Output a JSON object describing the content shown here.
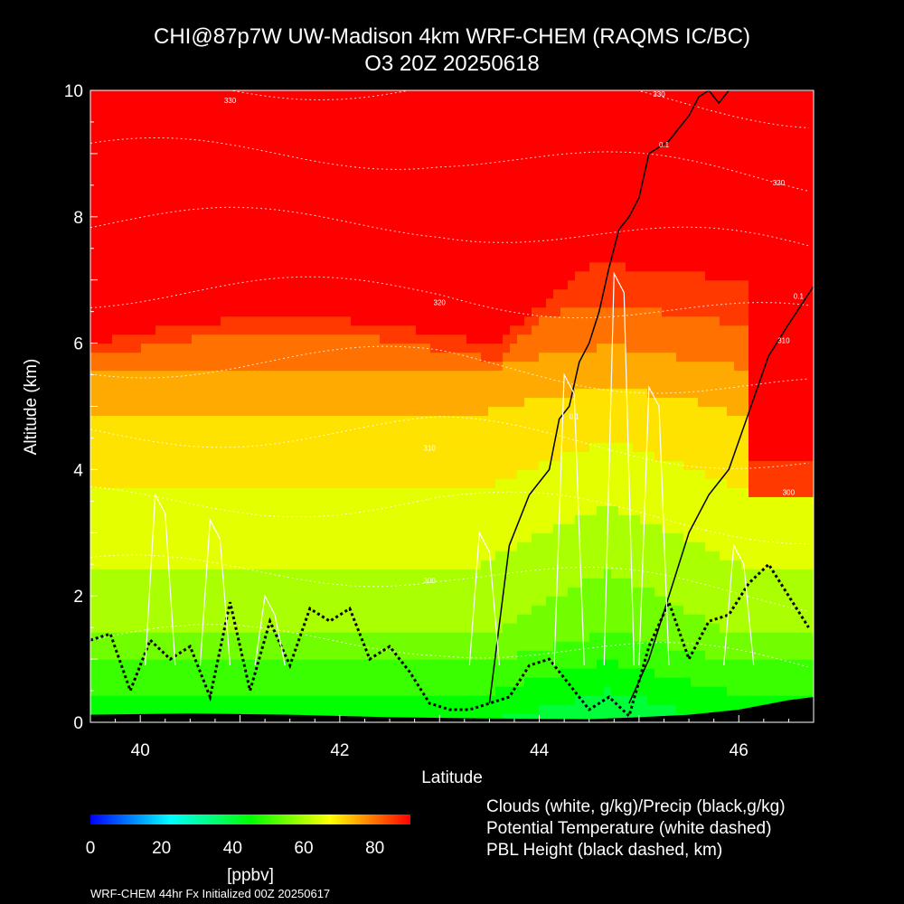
{
  "title": {
    "line1": "CHI@87p7W UW-Madison 4km WRF-CHEM (RAQMS IC/BC)",
    "line2": "O3 20Z 20250618"
  },
  "chart_data": {
    "type": "heatmap",
    "title": "CHI@87p7W UW-Madison 4km WRF-CHEM (RAQMS IC/BC) O3 20Z 20250618",
    "xlabel": "Latitude",
    "ylabel": "Altitude (km)",
    "xlim": [
      39.5,
      46.75
    ],
    "ylim": [
      0,
      10
    ],
    "x_ticks": [
      40,
      42,
      44,
      46
    ],
    "y_ticks": [
      0,
      2,
      4,
      6,
      8,
      10
    ],
    "field": "O3 mixing ratio (ppbv)",
    "colorbar": {
      "min": 0,
      "max": 90,
      "ticks": [
        0,
        20,
        40,
        60,
        80
      ],
      "unit": "[ppbv]",
      "colors": [
        "#0000ff",
        "#00ffff",
        "#00ff00",
        "#ffff00",
        "#ff0000"
      ]
    },
    "contour_labels": {
      "potential_temperature": [
        {
          "x": 40.9,
          "y": 9.8,
          "text": "330"
        },
        {
          "x": 45.2,
          "y": 9.9,
          "text": "330"
        },
        {
          "x": 43.0,
          "y": 6.6,
          "text": "320"
        },
        {
          "x": 42.9,
          "y": 4.3,
          "text": "310"
        },
        {
          "x": 42.9,
          "y": 2.2,
          "text": "300"
        },
        {
          "x": 46.4,
          "y": 8.5,
          "text": "320"
        },
        {
          "x": 46.45,
          "y": 6.0,
          "text": "310"
        },
        {
          "x": 46.5,
          "y": 3.6,
          "text": "300"
        }
      ],
      "clouds": [
        {
          "x": 44.35,
          "y": 4.8,
          "text": "0.1"
        },
        {
          "x": 45.25,
          "y": 9.1,
          "text": "0.1"
        },
        {
          "x": 46.6,
          "y": 6.7,
          "text": "0.1"
        }
      ]
    },
    "legend": [
      "Clouds (white, g/kg)/Precip (black,g/kg)",
      "Potential Temperature (white dashed)",
      "PBL Height (black dashed, km)"
    ],
    "pbl_height_km": {
      "x": [
        39.5,
        39.7,
        39.9,
        40.1,
        40.3,
        40.5,
        40.7,
        40.9,
        41.1,
        41.3,
        41.5,
        41.7,
        41.9,
        42.1,
        42.3,
        42.5,
        42.7,
        42.9,
        43.1,
        43.3,
        43.5,
        43.7,
        43.9,
        44.1,
        44.3,
        44.5,
        44.7,
        44.9,
        45.1,
        45.3,
        45.5,
        45.7,
        45.9,
        46.1,
        46.3,
        46.5,
        46.7
      ],
      "y": [
        1.3,
        1.4,
        0.5,
        1.3,
        1.0,
        1.2,
        0.4,
        1.9,
        0.5,
        1.6,
        0.9,
        1.8,
        1.6,
        1.8,
        1.0,
        1.2,
        0.8,
        0.3,
        0.2,
        0.2,
        0.3,
        0.4,
        0.9,
        1.0,
        0.6,
        0.2,
        0.4,
        0.1,
        1.2,
        1.9,
        1.0,
        1.6,
        1.7,
        2.2,
        2.5,
        2.0,
        1.5
      ]
    },
    "precip_contour_0p1": {
      "x": [
        43.5,
        43.7,
        43.9,
        44.1,
        44.2,
        44.3,
        44.4,
        44.5,
        44.6,
        44.7,
        44.8,
        44.9,
        45.0,
        45.1,
        45.2,
        45.3,
        45.4,
        45.5,
        45.6,
        45.7,
        45.8,
        45.9,
        46.0,
        46.1,
        46.3,
        46.5,
        46.75
      ],
      "y": [
        0.3,
        2.8,
        3.6,
        4.0,
        4.8,
        5.0,
        5.7,
        6.0,
        6.5,
        7.2,
        7.8,
        8.0,
        8.3,
        9.0,
        9.1,
        9.2,
        9.4,
        9.6,
        9.9,
        10.0,
        9.8,
        10.0,
        10.0,
        10.0,
        10.0,
        10.0,
        10.0
      ]
    },
    "precip_contour_0p1_east": {
      "x": [
        44.9,
        45.1,
        45.3,
        45.5,
        45.7,
        45.9,
        46.1,
        46.3,
        46.5,
        46.75
      ],
      "y": [
        0.3,
        1.0,
        2.0,
        3.0,
        3.6,
        4.0,
        4.9,
        5.8,
        6.3,
        6.9
      ]
    },
    "terrain_km": {
      "x": [
        39.5,
        40.5,
        41.5,
        42.5,
        43.5,
        44.5,
        45.0,
        45.5,
        46.0,
        46.5,
        46.75
      ],
      "y": [
        0.12,
        0.14,
        0.12,
        0.08,
        0.06,
        0.05,
        0.08,
        0.12,
        0.2,
        0.35,
        0.4
      ]
    }
  },
  "footer": "WRF-CHEM 44hr  Fx Initialized 00Z 20250617"
}
